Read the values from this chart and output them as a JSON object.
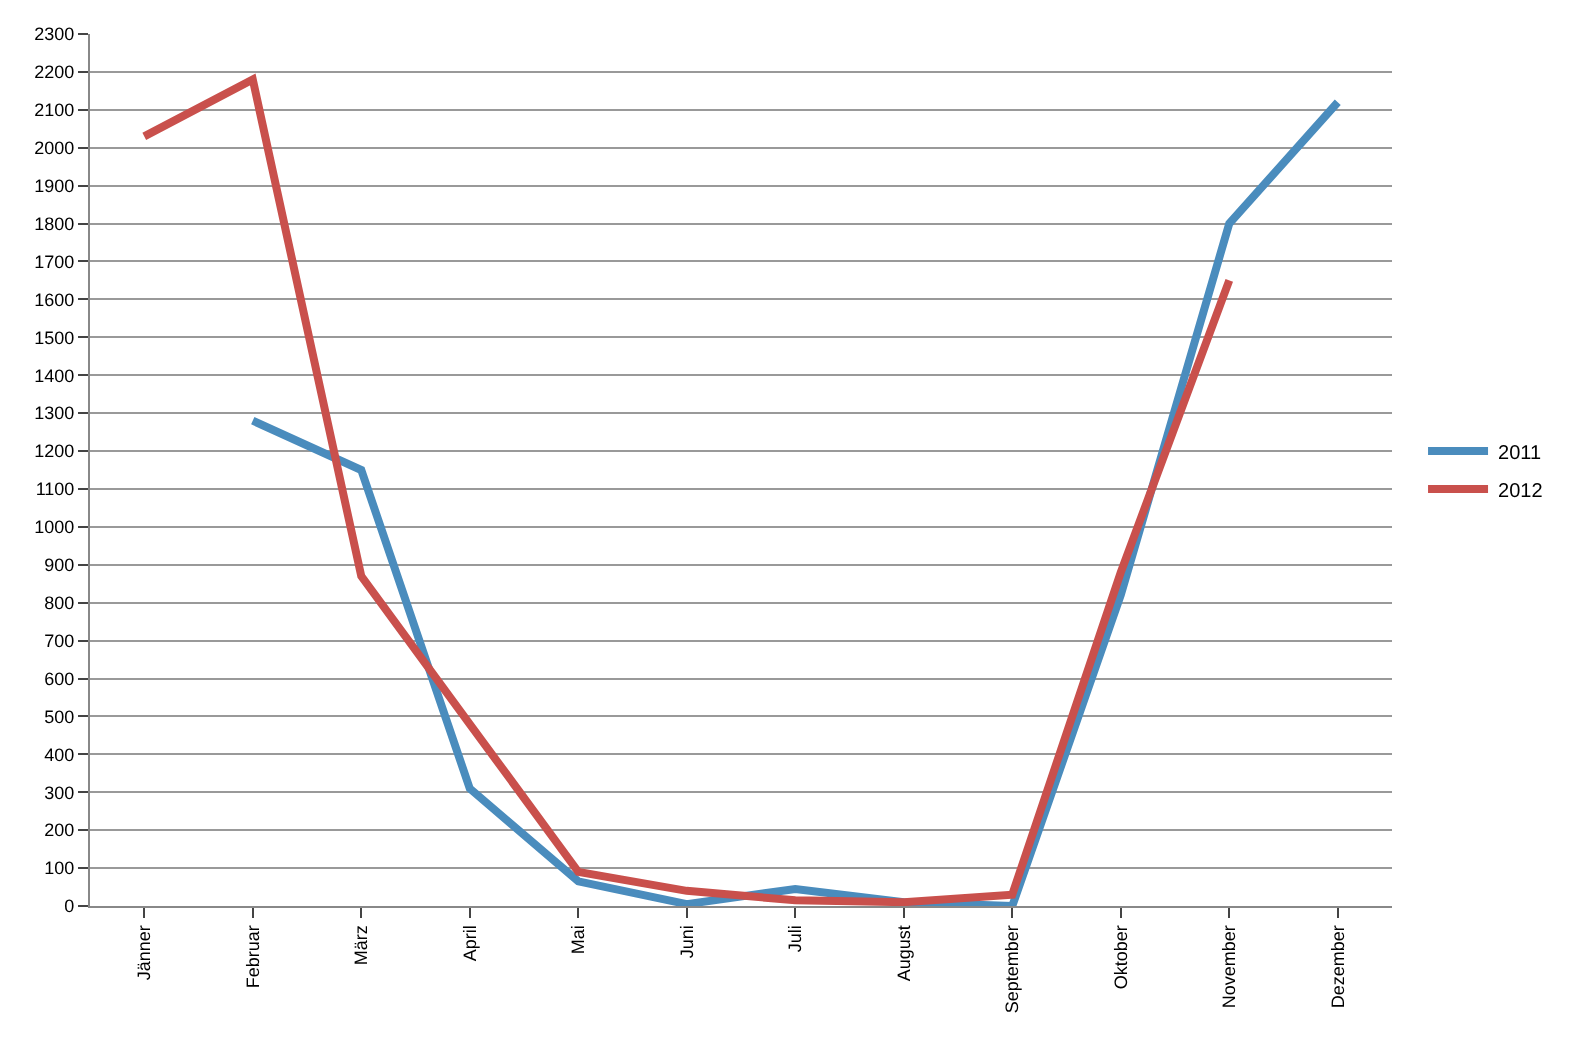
{
  "chart_data": {
    "type": "line",
    "categories": [
      "Jänner",
      "Februar",
      "März",
      "April",
      "Mai",
      "Juni",
      "Juli",
      "August",
      "September",
      "Oktober",
      "November",
      "Dezember"
    ],
    "series": [
      {
        "name": "2011",
        "color": "#4a8cbd",
        "values": [
          null,
          1280,
          1150,
          310,
          65,
          5,
          45,
          10,
          0,
          820,
          1800,
          2120
        ]
      },
      {
        "name": "2012",
        "color": "#c9504c",
        "values": [
          2030,
          2180,
          870,
          480,
          90,
          40,
          15,
          10,
          30,
          880,
          1650,
          null
        ]
      }
    ],
    "ylim": [
      0,
      2300
    ],
    "yticks": [
      0,
      100,
      200,
      300,
      400,
      500,
      600,
      700,
      800,
      900,
      1000,
      1100,
      1200,
      1300,
      1400,
      1500,
      1600,
      1700,
      1800,
      1900,
      2000,
      2100,
      2200,
      2300
    ],
    "grid": "y",
    "legend": "right",
    "marker": "none",
    "line_style": "solid"
  }
}
